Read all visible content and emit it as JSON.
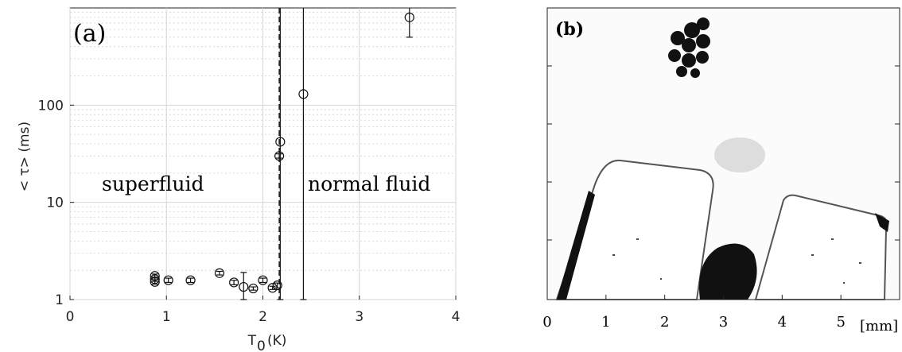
{
  "chart_data": [
    {
      "type": "scatter",
      "panel_label": "(a)",
      "xlabel_main": "T",
      "xlabel_sub": "0",
      "xlabel_unit": "(K)",
      "ylabel": "< τ> (ms)",
      "xlim": [
        0,
        4
      ],
      "ylim": [
        1,
        1000
      ],
      "yscale": "log",
      "grid": true,
      "x_ticks": [
        0,
        1,
        2,
        3,
        4
      ],
      "x_tick_labels": [
        "0",
        "1",
        "2",
        "3",
        "4"
      ],
      "y_ticks": [
        1,
        10,
        100
      ],
      "y_tick_labels": [
        "1",
        "10",
        "100"
      ],
      "lambda_line_x": 2.17,
      "annotations": {
        "left": "superfluid",
        "right": "normal fluid"
      },
      "points": [
        {
          "x": 0.88,
          "y": 1.75,
          "err": 0.08
        },
        {
          "x": 0.88,
          "y": 1.62,
          "err": 0.08
        },
        {
          "x": 0.88,
          "y": 1.52,
          "err": 0.08
        },
        {
          "x": 1.02,
          "y": 1.58,
          "err": 0.08
        },
        {
          "x": 1.25,
          "y": 1.58,
          "err": 0.08
        },
        {
          "x": 1.55,
          "y": 1.87,
          "err": 0.08
        },
        {
          "x": 1.7,
          "y": 1.5,
          "err": 0.08
        },
        {
          "x": 1.8,
          "y": 1.35,
          "err": 0.55
        },
        {
          "x": 1.9,
          "y": 1.3,
          "err": 0.05
        },
        {
          "x": 2.0,
          "y": 1.58,
          "err": 0.08
        },
        {
          "x": 2.1,
          "y": 1.32,
          "err": 0.05
        },
        {
          "x": 2.15,
          "y": 1.4,
          "err": 0.08
        },
        {
          "x": 2.17,
          "y": 30,
          "err": 1.5
        },
        {
          "x": 2.18,
          "y": 42,
          "err": 2000
        },
        {
          "x": 2.42,
          "y": 130,
          "err": 2000
        },
        {
          "x": 3.52,
          "y": 800,
          "err": 300
        }
      ]
    },
    {
      "type": "image",
      "panel_label": "(b)",
      "xlim": [
        0,
        6
      ],
      "x_ticks": [
        0,
        1,
        2,
        3,
        4,
        5
      ],
      "x_tick_labels": [
        "0",
        "1",
        "2",
        "3",
        "4",
        "5"
      ],
      "x_unit": "[mm]"
    }
  ]
}
